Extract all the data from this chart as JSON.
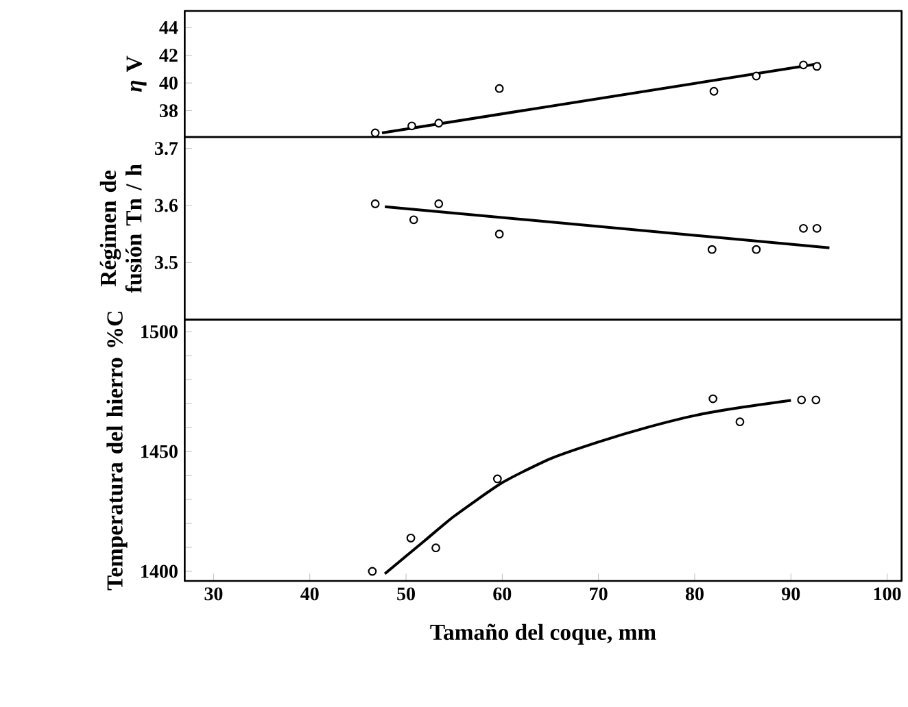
{
  "chart_data": [
    {
      "type": "scatter",
      "ylabel": "*η* V",
      "xlim": [
        27,
        101.5
      ],
      "ylim": [
        36.1,
        45.2
      ],
      "yticks": [
        38,
        40,
        42,
        44
      ],
      "tick_labels": "y",
      "series": [
        {
          "marker": "circle",
          "color": "#000000",
          "x": [
            46.8,
            50.6,
            53.4,
            59.7,
            82.0,
            86.4,
            91.3,
            92.7
          ],
          "values": [
            36.4,
            36.9,
            37.1,
            39.6,
            39.4,
            40.5,
            41.3,
            41.2
          ]
        },
        {
          "type": "line",
          "marker": "none",
          "color": "#000000",
          "x": [
            47.5,
            93
          ],
          "values": [
            36.4,
            41.4
          ]
        }
      ]
    },
    {
      "type": "scatter",
      "ylabel": "Régimen de fusión Tn / h",
      "xlim": [
        27,
        101.5
      ],
      "ylim": [
        3.4,
        3.72
      ],
      "yticks": [
        3.5,
        3.6,
        3.7
      ],
      "tick_labels": "y",
      "series": [
        {
          "marker": "circle",
          "color": "#000000",
          "x": [
            46.8,
            50.8,
            53.4,
            59.7,
            81.8,
            86.4,
            91.3,
            92.7
          ],
          "values": [
            3.603,
            3.575,
            3.603,
            3.55,
            3.523,
            3.523,
            3.56,
            3.56
          ]
        },
        {
          "type": "line",
          "marker": "none",
          "color": "#000000",
          "x": [
            47.8,
            94.0
          ],
          "values": [
            3.598,
            3.526
          ]
        }
      ]
    },
    {
      "type": "scatter",
      "ylabel": "Temperatura del hierro %C",
      "xlabel": "Tamaño del coque, mm",
      "xlim": [
        27,
        101.5
      ],
      "ylim": [
        1396,
        1505
      ],
      "xticks": [
        30,
        40,
        50,
        60,
        70,
        80,
        90,
        100
      ],
      "yticks": [
        1400,
        {
          "value": 1410,
          "label": null
        },
        {
          "value": 1420,
          "label": null
        },
        {
          "value": 1430,
          "label": null
        },
        {
          "value": 1440,
          "label": null
        },
        1450,
        {
          "value": 1460,
          "label": null
        },
        {
          "value": 1470,
          "label": null
        },
        {
          "value": 1480,
          "label": null
        },
        {
          "value": 1490,
          "label": null
        },
        1500
      ],
      "series": [
        {
          "marker": "circle",
          "color": "#000000",
          "x": [
            46.5,
            50.5,
            53.1,
            59.5,
            81.9,
            84.7,
            91.1,
            92.6
          ],
          "values": [
            1400,
            1413.9,
            1409.8,
            1438.6,
            1472,
            1462.4,
            1471.5,
            1471.5
          ]
        },
        {
          "type": "line",
          "marker": "none",
          "color": "#000000",
          "x": [
            47.8,
            52,
            55,
            60,
            65,
            70,
            75,
            80,
            85,
            90
          ],
          "values": [
            1399,
            1413,
            1423,
            1437,
            1447,
            1454,
            1460,
            1465,
            1468.5,
            1471.3
          ]
        }
      ]
    }
  ]
}
